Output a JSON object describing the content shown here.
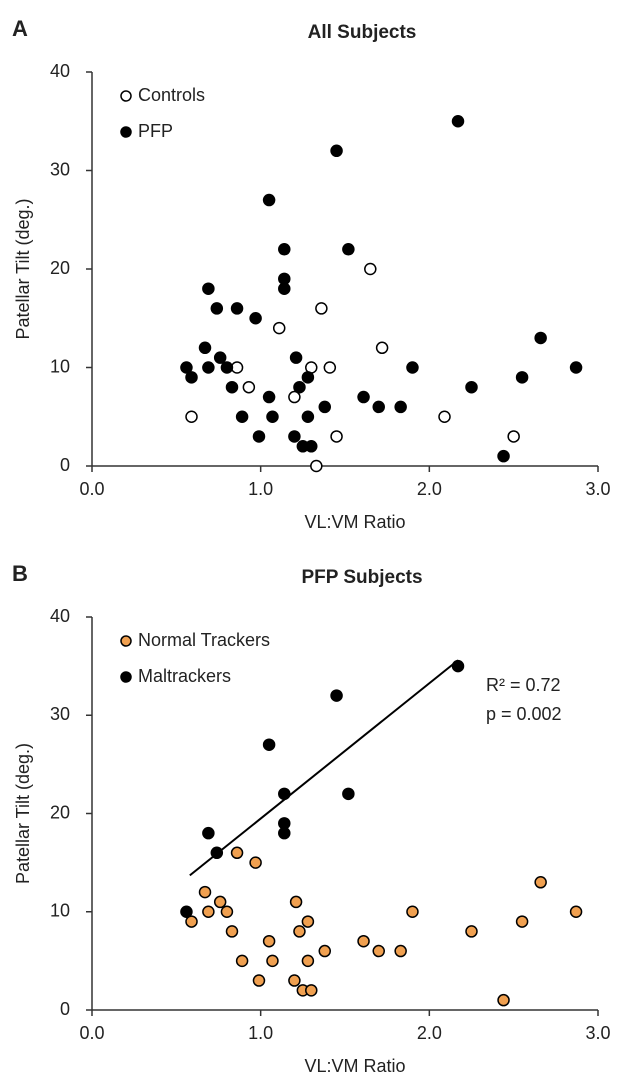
{
  "chart_data": [
    {
      "type": "scatter",
      "panel_label": "A",
      "title": "All Subjects",
      "xlabel": "VL:VM Ratio",
      "ylabel": "Patellar Tilt (deg.)",
      "xlim": [
        0,
        3
      ],
      "ylim": [
        0,
        40
      ],
      "xticks": [
        {
          "value": 0,
          "label": "0.0"
        },
        {
          "value": 1,
          "label": "1.0"
        },
        {
          "value": 2,
          "label": "2.0"
        },
        {
          "value": 3,
          "label": "3.0"
        }
      ],
      "yticks": [
        0,
        10,
        20,
        30,
        40
      ],
      "legend": "upper left",
      "series": [
        {
          "name": "Controls",
          "color": "#ffffff",
          "edgecolor": "#000000",
          "x": [
            0.59,
            0.86,
            0.93,
            1.11,
            1.2,
            1.3,
            1.41,
            1.36,
            1.33,
            1.45,
            1.65,
            1.72,
            2.09,
            2.5
          ],
          "values": [
            5,
            10,
            8,
            14,
            7,
            10,
            10,
            16,
            0,
            3,
            20,
            12,
            5,
            3
          ]
        },
        {
          "name": "PFP",
          "color": "#000000",
          "edgecolor": "#000000",
          "x": [
            0.56,
            0.69,
            0.74,
            1.05,
            1.14,
            1.14,
            1.14,
            1.45,
            1.52,
            2.17,
            0.59,
            0.67,
            0.69,
            0.76,
            0.8,
            0.83,
            0.86,
            0.89,
            0.97,
            0.99,
            1.05,
            1.07,
            1.2,
            1.21,
            1.23,
            1.25,
            1.28,
            1.28,
            1.3,
            1.38,
            1.61,
            1.7,
            1.83,
            1.9,
            2.25,
            2.44,
            2.55,
            2.66,
            2.87
          ],
          "values": [
            10,
            18,
            16,
            27,
            22,
            19,
            18,
            32,
            22,
            35,
            9,
            12,
            10,
            11,
            10,
            8,
            16,
            5,
            15,
            3,
            7,
            5,
            3,
            11,
            8,
            2,
            9,
            5,
            2,
            6,
            7,
            6,
            6,
            10,
            8,
            1,
            9,
            13,
            10
          ]
        }
      ]
    },
    {
      "type": "scatter",
      "panel_label": "B",
      "title": "PFP Subjects",
      "xlabel": "VL:VM Ratio",
      "ylabel": "Patellar Tilt (deg.)",
      "xlim": [
        0,
        3
      ],
      "ylim": [
        0,
        40
      ],
      "xticks": [
        {
          "value": 0,
          "label": "0.0"
        },
        {
          "value": 1,
          "label": "1.0"
        },
        {
          "value": 2,
          "label": "2.0"
        },
        {
          "value": 3,
          "label": "3.0"
        }
      ],
      "yticks": [
        0,
        10,
        20,
        30,
        40
      ],
      "legend": "upper left",
      "series": [
        {
          "name": "Normal Trackers",
          "color": "#f0a050",
          "edgecolor": "#000000",
          "x": [
            0.59,
            0.67,
            0.69,
            0.76,
            0.8,
            0.83,
            0.86,
            0.89,
            0.97,
            0.99,
            1.05,
            1.07,
            1.2,
            1.21,
            1.23,
            1.25,
            1.28,
            1.28,
            1.3,
            1.38,
            1.61,
            1.7,
            1.83,
            1.9,
            2.25,
            2.44,
            2.55,
            2.66,
            2.87
          ],
          "values": [
            9,
            12,
            10,
            11,
            10,
            8,
            16,
            5,
            15,
            3,
            7,
            5,
            3,
            11,
            8,
            2,
            9,
            5,
            2,
            6,
            7,
            6,
            6,
            10,
            8,
            1,
            9,
            13,
            10
          ]
        },
        {
          "name": "Maltrackers",
          "color": "#000000",
          "edgecolor": "#000000",
          "x": [
            0.56,
            0.69,
            0.74,
            1.05,
            1.14,
            1.14,
            1.14,
            1.45,
            1.52,
            2.17
          ],
          "values": [
            10,
            18,
            16,
            27,
            22,
            19,
            18,
            32,
            22,
            35
          ]
        }
      ],
      "trendline": {
        "x": [
          0.58,
          2.17
        ],
        "values": [
          13.7,
          35.6
        ]
      },
      "annotations": [
        "R² = 0.72",
        "p = 0.002"
      ]
    }
  ]
}
